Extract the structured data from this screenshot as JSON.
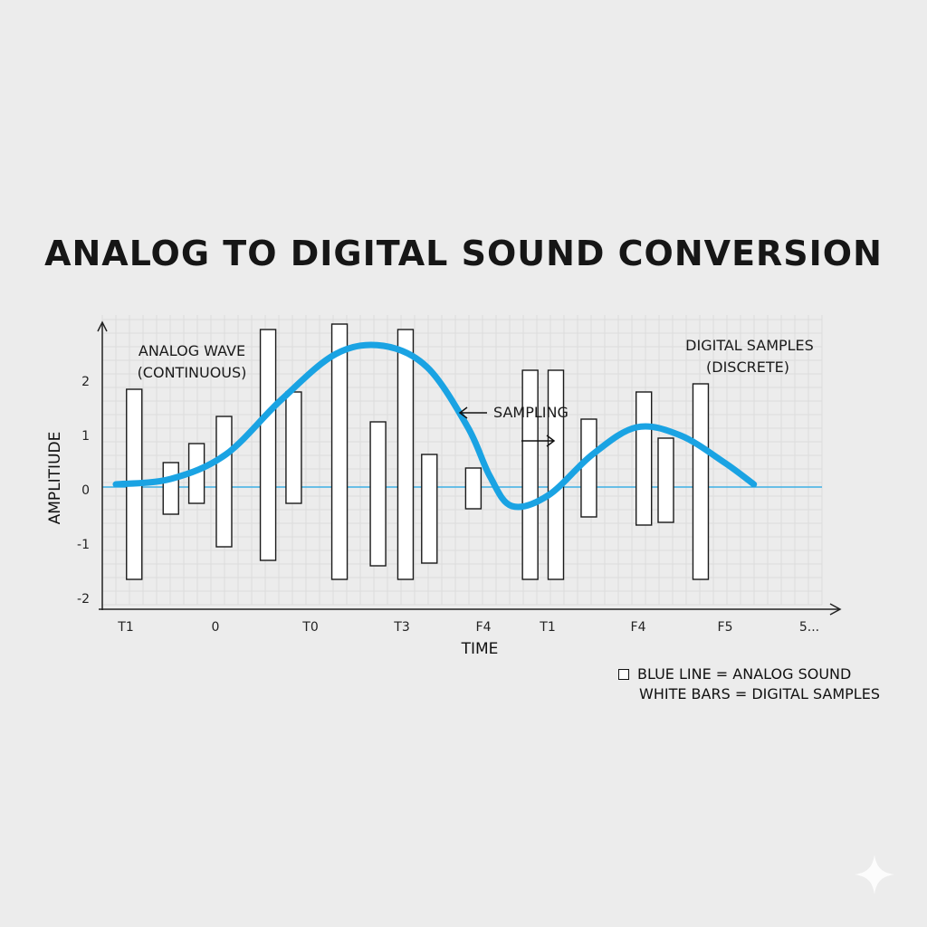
{
  "title": "ANALOG TO DIGITAL SOUND CONVERSION",
  "chart_data": {
    "type": "bar",
    "title": "ANALOG TO DIGITAL SOUND CONVERSION",
    "xlabel": "TIME",
    "ylabel": "AMPLITIUDE",
    "ylim": [
      -2,
      3
    ],
    "y_ticks": [
      2,
      1,
      0,
      -1,
      -2
    ],
    "y_tick_labels": [
      "2",
      "1",
      "0",
      "-1",
      "-2"
    ],
    "x_tick_labels": [
      "T1",
      "0",
      "T0",
      "T3",
      "F4",
      "T1",
      "F4",
      "F5",
      "5..."
    ],
    "grid": true,
    "samples": {
      "name": "DIGITAL SAMPLES",
      "t": [
        0.5,
        1.5,
        2.2,
        2.95,
        4.15,
        4.85,
        6.1,
        7.15,
        7.9,
        8.55,
        9.75,
        11.3,
        12.0,
        12.9,
        14.4,
        15.0,
        15.95,
        17.4,
        18.6
      ],
      "top": [
        1.8,
        0.45,
        0.8,
        1.3,
        2.9,
        1.75,
        3.0,
        1.2,
        2.9,
        0.6,
        0.35,
        2.15,
        2.15,
        1.25,
        1.75,
        0.9,
        1.9,
        0.0,
        0.0
      ],
      "bottom": [
        -1.7,
        -0.5,
        -0.3,
        -1.1,
        -1.35,
        -0.3,
        -1.7,
        -1.45,
        -1.7,
        -1.4,
        -0.4,
        -1.7,
        -1.7,
        -0.55,
        -0.7,
        -0.65,
        -1.7,
        0.0,
        0.0
      ]
    },
    "analog_wave": {
      "name": "ANALOG WAVE",
      "x": [
        0,
        1.5,
        3,
        4.5,
        6,
        7.3,
        8.5,
        9.6,
        10.2,
        10.8,
        11.8,
        13,
        14.2,
        15.4,
        16.6,
        17.4
      ],
      "y": [
        0.05,
        0.15,
        0.6,
        1.6,
        2.45,
        2.6,
        2.2,
        1.1,
        0.2,
        -0.35,
        -0.15,
        0.6,
        1.1,
        0.95,
        0.45,
        0.05
      ]
    },
    "annotations": {
      "analog_label_1": "ANALOG WAVE",
      "analog_label_2": "(CONTINUOUS)",
      "digital_label_1": "DIGITAL SAMPLES",
      "digital_label_2": "(DISCRETE)",
      "sampling_label": "SAMPLING"
    },
    "legend": {
      "placement": "bottom-right",
      "line1": "BLUE LINE = ANALOG SOUND",
      "line2": "WHITE BARS = DIGITAL SAMPLES"
    },
    "colors": {
      "wave": "#1aa3e3",
      "baseline": "#1aa3e3",
      "bar_fill": "#ffffff",
      "bar_stroke": "#1a1a1a",
      "grid": "#d9d9d9",
      "axis": "#222222"
    }
  }
}
